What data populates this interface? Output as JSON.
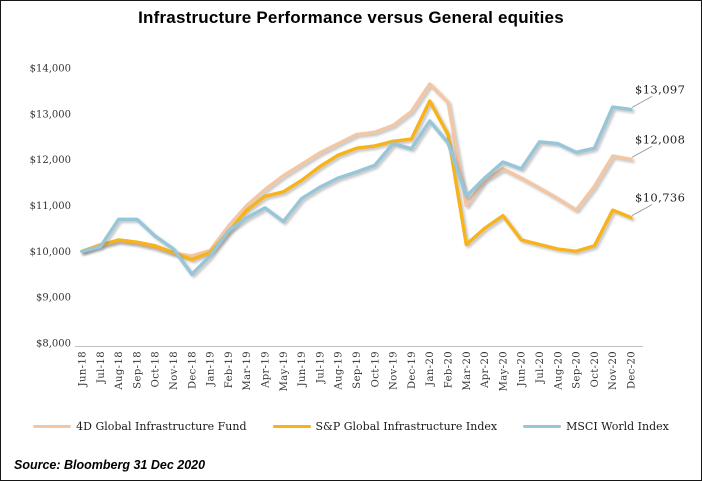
{
  "chart_data": {
    "type": "line",
    "title": "Infrastructure Performance versus General equities",
    "source_note": "Source: Bloomberg 31 Dec 2020",
    "grid": false,
    "legend_position": "bottom",
    "ylim": [
      8000,
      14000
    ],
    "y_tick_labels": [
      "$8,000",
      "$9,000",
      "$10,000",
      "$11,000",
      "$12,000",
      "$13,000",
      "$14,000"
    ],
    "y_tick_values": [
      8000,
      9000,
      10000,
      11000,
      12000,
      13000,
      14000
    ],
    "x_labels": [
      "Jun-18",
      "Jul-18",
      "Aug-18",
      "Sep-18",
      "Oct-18",
      "Nov-18",
      "Dec-18",
      "Jan-19",
      "Feb-19",
      "Mar-19",
      "Apr-19",
      "May-19",
      "Jun-19",
      "Jul-19",
      "Aug-19",
      "Sep-19",
      "Oct-19",
      "Nov-19",
      "Dec-19",
      "Jan-20",
      "Feb-20",
      "Mar-20",
      "Apr-20",
      "May-20",
      "Jun-20",
      "Jul-20",
      "Aug-20",
      "Sep-20",
      "Oct-20",
      "Nov-20",
      "Dec-20"
    ],
    "series": [
      {
        "name": "4D Global Infrastructure Fund",
        "color": "#F4C7A4",
        "end_label": "$12,008",
        "values": [
          10000,
          10150,
          10230,
          10180,
          10080,
          9960,
          9900,
          10020,
          10550,
          11000,
          11350,
          11650,
          11900,
          12150,
          12350,
          12550,
          12600,
          12750,
          13050,
          13650,
          13250,
          11000,
          11550,
          11800,
          11600,
          11380,
          11150,
          10900,
          11420,
          12080,
          12008
        ]
      },
      {
        "name": "S&P Global Infrastructure Index",
        "color": "#F7B319",
        "end_label": "$10,736",
        "values": [
          10000,
          10130,
          10250,
          10200,
          10120,
          9970,
          9820,
          9980,
          10420,
          10900,
          11200,
          11300,
          11550,
          11850,
          12100,
          12250,
          12300,
          12400,
          12450,
          13280,
          12550,
          10150,
          10500,
          10780,
          10250,
          10150,
          10050,
          10000,
          10120,
          10900,
          10736
        ]
      },
      {
        "name": "MSCI World Index",
        "color": "#96C6D8",
        "end_label": "$13,097",
        "values": [
          10000,
          10100,
          10700,
          10700,
          10330,
          10050,
          9500,
          9900,
          10450,
          10730,
          10950,
          10650,
          11150,
          11400,
          11600,
          11730,
          11880,
          12350,
          12240,
          12845,
          12365,
          11200,
          11600,
          11950,
          11800,
          12390,
          12350,
          12160,
          12250,
          13150,
          13097
        ]
      }
    ]
  }
}
